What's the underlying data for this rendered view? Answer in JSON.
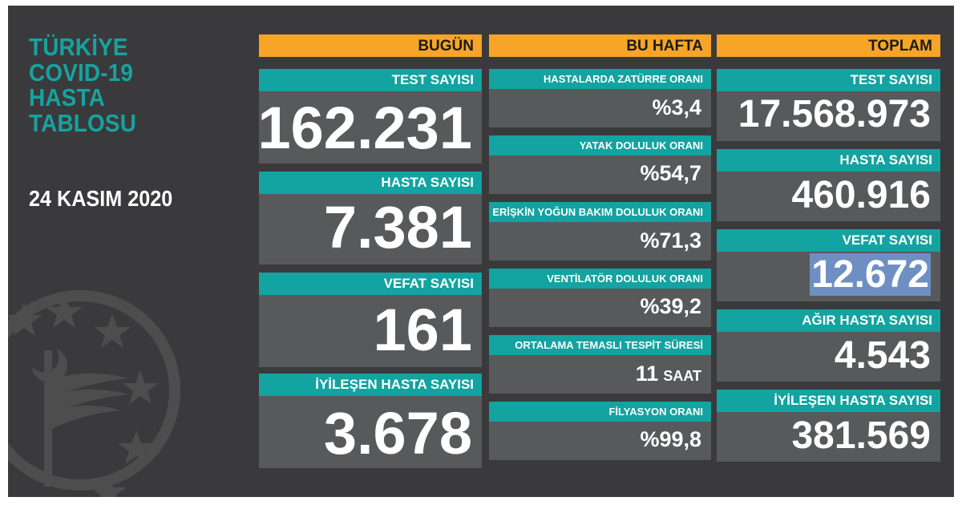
{
  "title": "TÜRKİYE\nCOVID-19\nHASTA\nTABLOSU",
  "date": "24 KASIM 2020",
  "colors": {
    "background": "#3a3a3c",
    "header": "#f7a529",
    "label": "#13a3a0",
    "card": "#58595b",
    "accent_title": "#16a3a0",
    "highlight": "#6f8fc3"
  },
  "emblem_icon": "ministry-of-health-emblem-icon",
  "bugun": {
    "header": "BUGÜN",
    "items": [
      {
        "label": "TEST SAYISI",
        "value": "162.231"
      },
      {
        "label": "HASTA SAYISI",
        "value": "7.381"
      },
      {
        "label": "VEFAT SAYISI",
        "value": "161"
      },
      {
        "label": "İYİLEŞEN HASTA SAYISI",
        "value": "3.678"
      }
    ]
  },
  "bu_hafta": {
    "header": "BU HAFTA",
    "items": [
      {
        "label": "HASTALARDA ZATÜRRE ORANI",
        "value": "%3,4"
      },
      {
        "label": "YATAK DOLULUK ORANI",
        "value": "%54,7"
      },
      {
        "label": "ERİŞKİN YOĞUN BAKIM DOLULUK ORANI",
        "value": "%71,3"
      },
      {
        "label": "VENTİLATÖR DOLULUK ORANI",
        "value": "%39,2"
      },
      {
        "label": "ORTALAMA TEMASLI TESPİT SÜRESİ",
        "value": "11",
        "unit": "SAAT"
      },
      {
        "label": "FİLYASYON ORANI",
        "value": "%99,8"
      }
    ]
  },
  "toplam": {
    "header": "TOPLAM",
    "items": [
      {
        "label": "TEST SAYISI",
        "value": "17.568.973"
      },
      {
        "label": "HASTA SAYISI",
        "value": "460.916"
      },
      {
        "label": "VEFAT SAYISI",
        "value": "12.672"
      },
      {
        "label": "AĞIR HASTA SAYISI",
        "value": "4.543"
      },
      {
        "label": "İYİLEŞEN HASTA SAYISI",
        "value": "381.569"
      }
    ]
  }
}
